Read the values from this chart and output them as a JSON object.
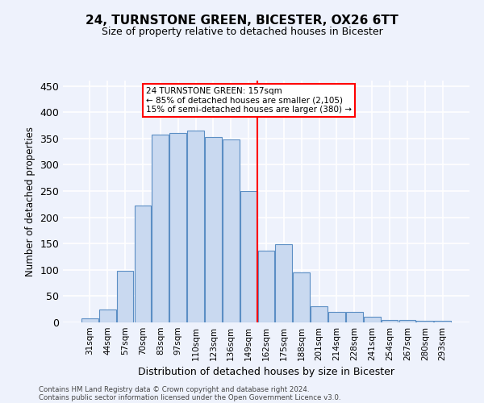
{
  "title": "24, TURNSTONE GREEN, BICESTER, OX26 6TT",
  "subtitle": "Size of property relative to detached houses in Bicester",
  "xlabel": "Distribution of detached houses by size in Bicester",
  "ylabel": "Number of detached properties",
  "bar_labels": [
    "31sqm",
    "44sqm",
    "57sqm",
    "70sqm",
    "83sqm",
    "97sqm",
    "110sqm",
    "123sqm",
    "136sqm",
    "149sqm",
    "162sqm",
    "175sqm",
    "188sqm",
    "201sqm",
    "214sqm",
    "228sqm",
    "241sqm",
    "254sqm",
    "267sqm",
    "280sqm",
    "293sqm"
  ],
  "bar_values": [
    8,
    25,
    98,
    222,
    358,
    360,
    365,
    352,
    348,
    250,
    137,
    148,
    95,
    30,
    20,
    20,
    10,
    4,
    5,
    3,
    3
  ],
  "bar_color": "#c9d9f0",
  "bar_edge_color": "#5b8ec4",
  "vline_color": "red",
  "annotation_text": "24 TURNSTONE GREEN: 157sqm\n← 85% of detached houses are smaller (2,105)\n15% of semi-detached houses are larger (380) →",
  "annotation_box_color": "white",
  "annotation_box_edge_color": "red",
  "ylim": [
    0,
    460
  ],
  "yticks": [
    0,
    50,
    100,
    150,
    200,
    250,
    300,
    350,
    400,
    450
  ],
  "footer_line1": "Contains HM Land Registry data © Crown copyright and database right 2024.",
  "footer_line2": "Contains public sector information licensed under the Open Government Licence v3.0.",
  "bg_color": "#eef2fc",
  "grid_color": "white"
}
